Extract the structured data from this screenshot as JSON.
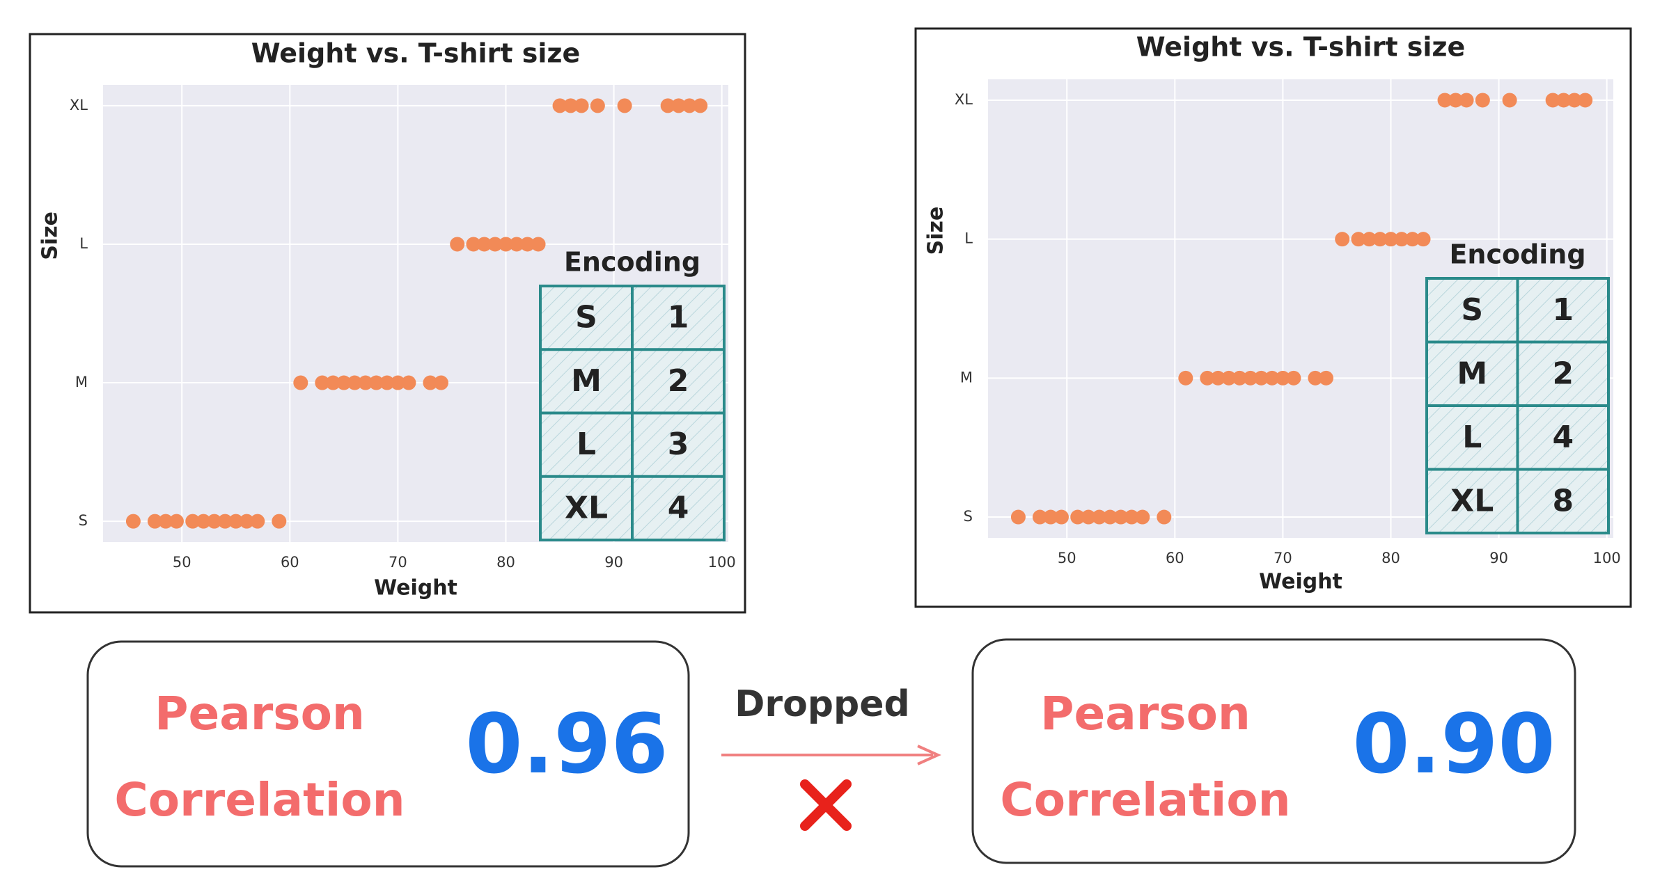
{
  "chart_data": [
    {
      "type": "scatter",
      "title": "Weight vs. T-shirt size",
      "x_label": "Weight",
      "y_label": "Size",
      "xlim": [
        42.7,
        100.6
      ],
      "xticks": [
        50,
        60,
        70,
        80,
        90,
        100
      ],
      "ycategories": [
        "S",
        "M",
        "L",
        "XL"
      ],
      "grid": true,
      "color": "#f28a57",
      "x": [
        45.5,
        47.5,
        48.5,
        49.5,
        51,
        52,
        53,
        54,
        55,
        56,
        57,
        59,
        61,
        63,
        64,
        65,
        66,
        67,
        68,
        69,
        70,
        71,
        73,
        74,
        75.5,
        77,
        78,
        79,
        80,
        81,
        82,
        83,
        85,
        86,
        87,
        88.5,
        91,
        95,
        96,
        97,
        98
      ],
      "y": [
        "S",
        "S",
        "S",
        "S",
        "S",
        "S",
        "S",
        "S",
        "S",
        "S",
        "S",
        "S",
        "M",
        "M",
        "M",
        "M",
        "M",
        "M",
        "M",
        "M",
        "M",
        "M",
        "M",
        "M",
        "L",
        "L",
        "L",
        "L",
        "L",
        "L",
        "L",
        "L",
        "XL",
        "XL",
        "XL",
        "XL",
        "XL",
        "XL",
        "XL",
        "XL",
        "XL"
      ],
      "encoding": {
        "title": "Encoding",
        "rows": [
          [
            "S",
            1
          ],
          [
            "M",
            2
          ],
          [
            "L",
            3
          ],
          [
            "XL",
            4
          ]
        ]
      }
    },
    {
      "type": "scatter",
      "title": "Weight vs. T-shirt size",
      "x_label": "Weight",
      "y_label": "Size",
      "xlim": [
        42.7,
        100.6
      ],
      "xticks": [
        50,
        60,
        70,
        80,
        90,
        100
      ],
      "ycategories": [
        "S",
        "M",
        "L",
        "XL"
      ],
      "grid": true,
      "color": "#f28a57",
      "x": [
        45.5,
        47.5,
        48.5,
        49.5,
        51,
        52,
        53,
        54,
        55,
        56,
        57,
        59,
        61,
        63,
        64,
        65,
        66,
        67,
        68,
        69,
        70,
        71,
        73,
        74,
        75.5,
        77,
        78,
        79,
        80,
        81,
        82,
        83,
        85,
        86,
        87,
        88.5,
        91,
        95,
        96,
        97,
        98
      ],
      "y": [
        "S",
        "S",
        "S",
        "S",
        "S",
        "S",
        "S",
        "S",
        "S",
        "S",
        "S",
        "S",
        "M",
        "M",
        "M",
        "M",
        "M",
        "M",
        "M",
        "M",
        "M",
        "M",
        "M",
        "M",
        "L",
        "L",
        "L",
        "L",
        "L",
        "L",
        "L",
        "L",
        "XL",
        "XL",
        "XL",
        "XL",
        "XL",
        "XL",
        "XL",
        "XL",
        "XL"
      ],
      "encoding": {
        "title": "Encoding",
        "rows": [
          [
            "S",
            1
          ],
          [
            "M",
            2
          ],
          [
            "L",
            4
          ],
          [
            "XL",
            8
          ]
        ]
      }
    }
  ],
  "correlations": [
    {
      "label_line1": "Pearson",
      "label_line2": "Correlation",
      "value": "0.96"
    },
    {
      "label_line1": "Pearson",
      "label_line2": "Correlation",
      "value": "0.90"
    }
  ],
  "transition": {
    "label": "Dropped"
  }
}
